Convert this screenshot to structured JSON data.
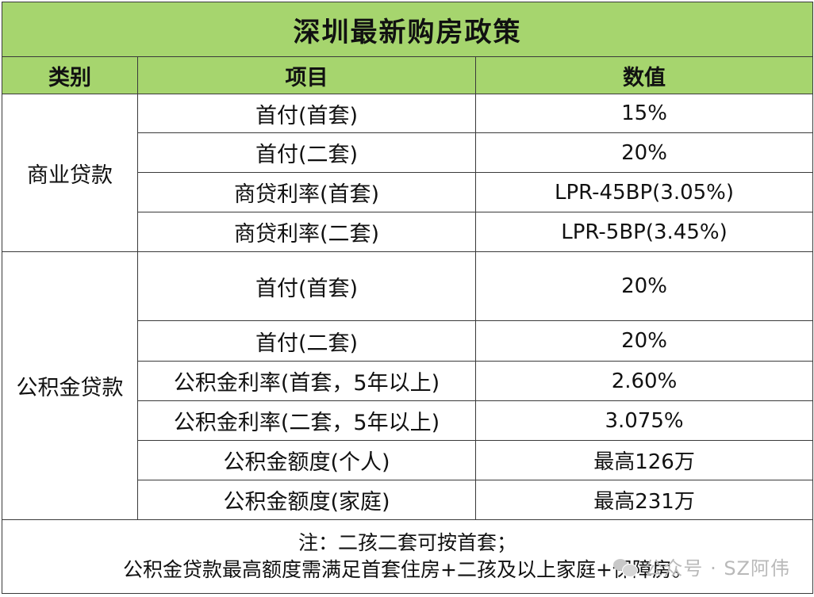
{
  "table": {
    "title": "深圳最新购房政策",
    "headers": {
      "category": "类别",
      "item": "项目",
      "value": "数值"
    },
    "groups": [
      {
        "category": "商业贷款",
        "rows": [
          {
            "item": "首付(首套)",
            "value": "15%"
          },
          {
            "item": "首付(二套)",
            "value": "20%"
          },
          {
            "item": "商贷利率(首套)",
            "value": "LPR-45BP(3.05%)"
          },
          {
            "item": "商贷利率(二套)",
            "value": "LPR-5BP(3.45%)"
          }
        ]
      },
      {
        "category": "公积金贷款",
        "rows": [
          {
            "item": "首付(首套)",
            "value": "20%"
          },
          {
            "item": "首付(二套)",
            "value": "20%"
          },
          {
            "item": "公积金利率(首套，5年以上)",
            "value": "2.60%"
          },
          {
            "item": "公积金利率(二套，5年以上)",
            "value": "3.075%"
          },
          {
            "item": "公积金额度(个人)",
            "value": "最高126万"
          },
          {
            "item": "公积金额度(家庭)",
            "value": "最高231万"
          }
        ]
      }
    ],
    "note": {
      "line1": "注：二孩二套可按首套；",
      "line2": "公积金贷款最高额度需满足首套住房+二孩及以上家庭+保障房。"
    }
  },
  "watermark": {
    "text": "公众号 · SZ阿伟",
    "icon": "wechat-icon"
  },
  "colors": {
    "header_bg": "#a6d56e",
    "border": "#3a3a3a"
  }
}
